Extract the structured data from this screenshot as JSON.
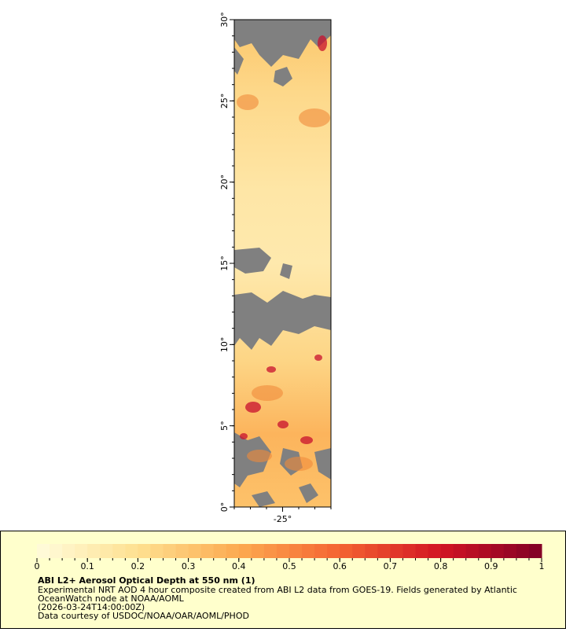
{
  "map": {
    "lat_range": [
      0,
      30
    ],
    "lon_range": [
      -28,
      -22
    ],
    "lat_labels": [
      {
        "value": 30,
        "label": "30°"
      },
      {
        "value": 25,
        "label": "25°"
      },
      {
        "value": 20,
        "label": "20°"
      },
      {
        "value": 15,
        "label": "15°"
      },
      {
        "value": 10,
        "label": "10°"
      },
      {
        "value": 5,
        "label": "5°"
      },
      {
        "value": 0,
        "label": "0°"
      }
    ],
    "lon_labels": [
      {
        "value": -25,
        "label": "-25°"
      }
    ]
  },
  "colorbar": {
    "range": [
      0,
      1
    ],
    "ticks": [
      0,
      0.1,
      0.2,
      0.3,
      0.4,
      0.5,
      0.6,
      0.7,
      0.8,
      0.9,
      1
    ]
  },
  "legend": {
    "title": "ABI L2+ Aerosol Optical Depth at 550 nm (1)",
    "lines": [
      "Experimental NRT AOD 4 hour composite created from ABI L2 data from GOES-19. Fields generated by Atlantic",
      "OceanWatch node at NOAA/AOML",
      "(2026-03-24T14:00:00Z)",
      "Data courtesy of USDOC/NOAA/OAR/AOML/PHOD"
    ]
  }
}
